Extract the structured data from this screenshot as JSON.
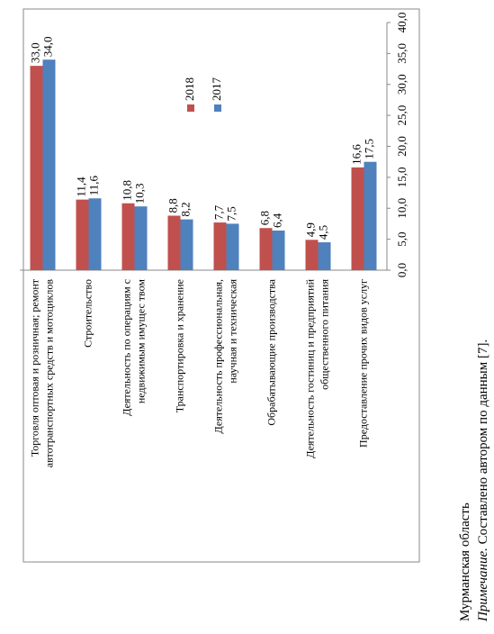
{
  "chart_data": {
    "type": "bar",
    "categories": [
      [
        "Торговля оптовая и розничная; ремонт",
        "автотранспортных  средств и мотоциклов"
      ],
      [
        "Строительство"
      ],
      [
        "Деятельность по операциям с",
        "недвижимым имущес твом"
      ],
      [
        "Транспортировка  и хранение"
      ],
      [
        "Деятельность профессиональная,",
        "научная и техническая"
      ],
      [
        "Обрабатывающие производства"
      ],
      [
        "Деятельность гостиниц и предприятий",
        "общественного питания"
      ],
      [
        "Предоставление прочих видов услуг"
      ]
    ],
    "series": [
      {
        "name": "2018",
        "color": "#c0504d",
        "values": [
          33.0,
          11.4,
          10.8,
          8.8,
          7.7,
          6.8,
          4.9,
          16.6
        ],
        "value_labels": [
          "33,0",
          "11,4",
          "10,8",
          "8,8",
          "7,7",
          "6,8",
          "4,9",
          "16,6"
        ]
      },
      {
        "name": "2017",
        "color": "#4f81bd",
        "values": [
          34.0,
          11.6,
          10.3,
          8.2,
          7.5,
          6.4,
          4.5,
          17.5
        ],
        "value_labels": [
          "34,0",
          "11,6",
          "10,3",
          "8,2",
          "7,5",
          "6,4",
          "4,5",
          "17,5"
        ]
      }
    ],
    "ylim": [
      0,
      40
    ],
    "yticks": [
      {
        "value": 0,
        "label": "0,0"
      },
      {
        "value": 5,
        "label": "5,0"
      },
      {
        "value": 10,
        "label": "10,0"
      },
      {
        "value": 15,
        "label": "15,0"
      },
      {
        "value": 20,
        "label": "20,0"
      },
      {
        "value": 25,
        "label": "25,0"
      },
      {
        "value": 30,
        "label": "30,0"
      },
      {
        "value": 35,
        "label": "35,0"
      },
      {
        "value": 40,
        "label": "40,0"
      }
    ],
    "grid": false,
    "legend": "top",
    "region": "Мурманская область",
    "note_label": "Примечание.",
    "note_text": " Составлено автором по данным [7]."
  }
}
